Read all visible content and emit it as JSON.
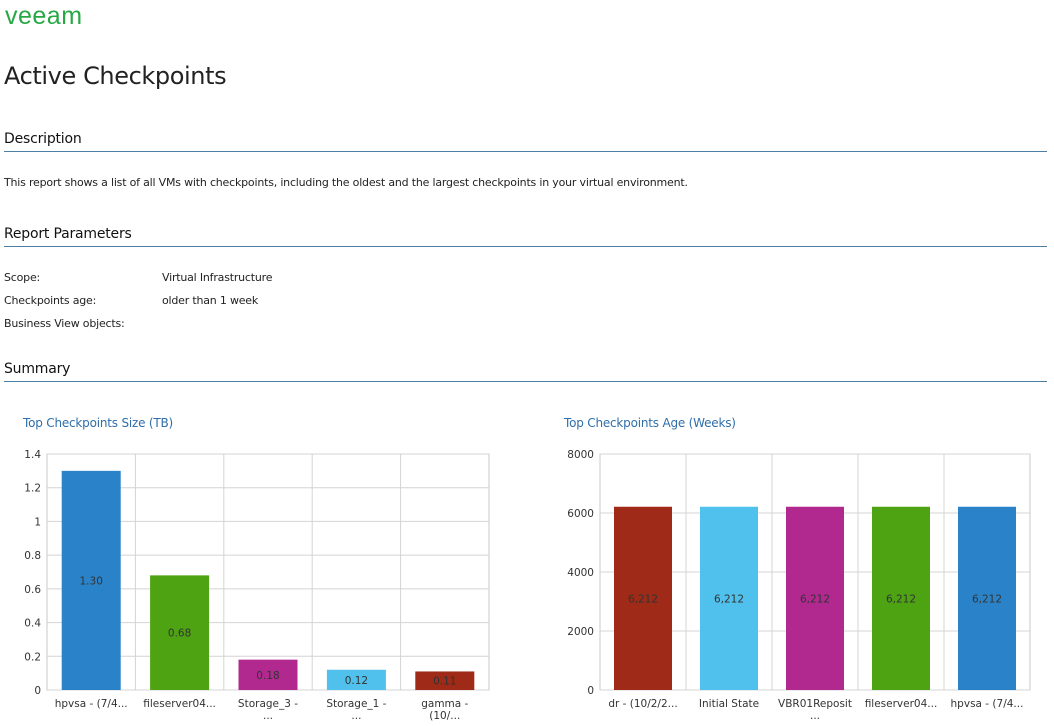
{
  "logo": "veeam",
  "page_title": "Active Checkpoints",
  "sections": {
    "description": "Description",
    "parameters": "Report Parameters",
    "summary": "Summary"
  },
  "description_text": "This report shows a list of all VMs with checkpoints, including the oldest and the largest checkpoints in your virtual environment.",
  "params": [
    {
      "label": "Scope:",
      "value": "Virtual Infrastructure"
    },
    {
      "label": "Checkpoints age:",
      "value": "older than 1 week"
    },
    {
      "label": "Business View objects:",
      "value": ""
    }
  ],
  "colors": {
    "brand": "#27a845",
    "section_rule": "#4d7ea3",
    "chart_title": "#2f6eaa"
  },
  "chart_data": [
    {
      "type": "bar",
      "title": "Top Checkpoints Size (TB)",
      "categories": [
        "hpvsa - (7/4...",
        "fileserver04...",
        "Storage_3 - ...",
        "Storage_1 - ...",
        "gamma - (10/..."
      ],
      "values": [
        1.3,
        0.68,
        0.18,
        0.12,
        0.11
      ],
      "data_labels": [
        "1.30",
        "0.68",
        "0.18",
        "0.12",
        "0.11"
      ],
      "bar_colors": [
        "#2a83c8",
        "#4ea312",
        "#b1298f",
        "#4fc1ec",
        "#9e2a17"
      ],
      "ylim": [
        0,
        1.4
      ],
      "yticks": [
        "0",
        "0.2",
        "0.4",
        "0.6",
        "0.8",
        "1",
        "1.2",
        "1.4"
      ],
      "ytick_values": [
        0,
        0.2,
        0.4,
        0.6,
        0.8,
        1,
        1.2,
        1.4
      ],
      "grid": true
    },
    {
      "type": "bar",
      "title": "Top Checkpoints Age (Weeks)",
      "categories": [
        "dr - (10/2/2...",
        "Initial State",
        "VBR01Reposit ...",
        "fileserver04...",
        "hpvsa - (7/4..."
      ],
      "values": [
        6212,
        6212,
        6212,
        6212,
        6212
      ],
      "data_labels": [
        "6,212",
        "6,212",
        "6,212",
        "6,212",
        "6,212"
      ],
      "bar_colors": [
        "#9e2a17",
        "#4fc1ec",
        "#b1298f",
        "#4ea312",
        "#2a83c8"
      ],
      "ylim": [
        0,
        8000
      ],
      "yticks": [
        "0",
        "2000",
        "4000",
        "6000",
        "8000"
      ],
      "ytick_values": [
        0,
        2000,
        4000,
        6000,
        8000
      ],
      "grid": true
    }
  ]
}
